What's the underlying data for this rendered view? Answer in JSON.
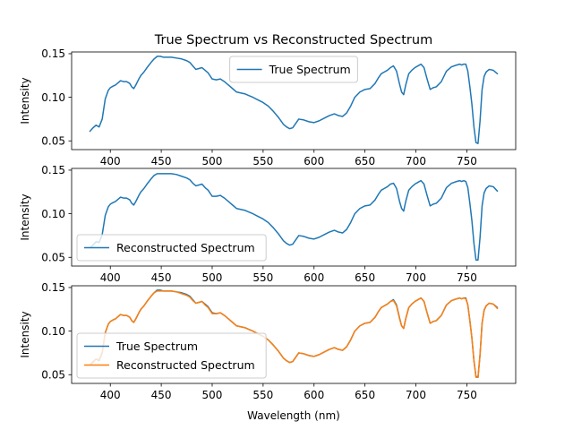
{
  "chart_data": [
    {
      "type": "line",
      "title": "True Spectrum vs Reconstructed Spectrum",
      "xlabel": "",
      "ylabel": "Intensity",
      "xlim": [
        362,
        798
      ],
      "ylim": [
        0.04,
        0.152
      ],
      "xticks": [
        400,
        450,
        500,
        550,
        600,
        650,
        700,
        750
      ],
      "yticks": [
        0.05,
        0.1,
        0.15
      ],
      "ytick_labels": [
        "0.05",
        "0.10",
        "0.15"
      ],
      "legend": "upper-center",
      "grid": false,
      "series": [
        {
          "name": "True Spectrum",
          "color": "#1f77b4",
          "x": [
            380,
            383,
            386,
            389,
            392,
            395,
            398,
            400,
            403,
            405,
            408,
            410,
            413,
            416,
            419,
            421,
            423,
            425,
            428,
            430,
            433,
            436,
            440,
            443,
            446,
            449,
            452,
            455,
            460,
            465,
            470,
            475,
            478,
            481,
            484,
            487,
            490,
            493,
            496,
            500,
            504,
            508,
            512,
            516,
            520,
            524,
            528,
            532,
            536,
            540,
            545,
            550,
            555,
            560,
            565,
            570,
            573,
            576,
            579,
            582,
            585,
            590,
            595,
            600,
            605,
            610,
            615,
            620,
            624,
            628,
            632,
            636,
            640,
            645,
            650,
            655,
            660,
            663,
            666,
            669,
            672,
            675,
            678,
            681,
            684,
            686,
            688,
            690,
            693,
            696,
            699,
            702,
            705,
            708,
            711,
            714,
            717,
            720,
            725,
            730,
            735,
            740,
            743,
            745,
            747,
            749,
            751,
            753,
            755,
            757,
            759,
            761,
            763,
            765,
            767,
            769,
            772,
            776,
            780
          ],
          "y": [
            0.061,
            0.065,
            0.068,
            0.066,
            0.075,
            0.098,
            0.108,
            0.111,
            0.113,
            0.114,
            0.117,
            0.119,
            0.118,
            0.118,
            0.116,
            0.112,
            0.11,
            0.114,
            0.121,
            0.125,
            0.129,
            0.134,
            0.14,
            0.144,
            0.147,
            0.147,
            0.146,
            0.146,
            0.146,
            0.145,
            0.144,
            0.142,
            0.14,
            0.136,
            0.132,
            0.133,
            0.134,
            0.131,
            0.128,
            0.121,
            0.12,
            0.121,
            0.118,
            0.114,
            0.11,
            0.106,
            0.105,
            0.104,
            0.102,
            0.1,
            0.097,
            0.094,
            0.09,
            0.084,
            0.077,
            0.069,
            0.066,
            0.064,
            0.065,
            0.07,
            0.075,
            0.074,
            0.072,
            0.071,
            0.073,
            0.076,
            0.079,
            0.081,
            0.079,
            0.078,
            0.082,
            0.09,
            0.1,
            0.106,
            0.109,
            0.11,
            0.116,
            0.122,
            0.127,
            0.129,
            0.131,
            0.134,
            0.136,
            0.13,
            0.115,
            0.106,
            0.103,
            0.114,
            0.127,
            0.131,
            0.134,
            0.136,
            0.138,
            0.134,
            0.121,
            0.109,
            0.111,
            0.112,
            0.118,
            0.13,
            0.135,
            0.137,
            0.138,
            0.137,
            0.138,
            0.138,
            0.13,
            0.112,
            0.092,
            0.066,
            0.048,
            0.047,
            0.073,
            0.109,
            0.124,
            0.129,
            0.132,
            0.131,
            0.127
          ]
        }
      ]
    },
    {
      "type": "line",
      "title": "",
      "xlabel": "",
      "ylabel": "Intensity",
      "xlim": [
        362,
        798
      ],
      "ylim": [
        0.04,
        0.152
      ],
      "xticks": [
        400,
        450,
        500,
        550,
        600,
        650,
        700,
        750
      ],
      "yticks": [
        0.05,
        0.1,
        0.15
      ],
      "ytick_labels": [
        "0.05",
        "0.10",
        "0.15"
      ],
      "legend": "lower-left",
      "grid": false,
      "series": [
        {
          "name": "Reconstructed Spectrum",
          "color": "#1f77b4",
          "x": [
            380,
            383,
            386,
            389,
            392,
            395,
            398,
            400,
            403,
            405,
            408,
            410,
            413,
            416,
            419,
            421,
            423,
            425,
            428,
            430,
            433,
            436,
            440,
            443,
            446,
            449,
            452,
            455,
            460,
            465,
            470,
            475,
            478,
            481,
            484,
            487,
            490,
            493,
            496,
            500,
            504,
            508,
            512,
            516,
            520,
            524,
            528,
            532,
            536,
            540,
            545,
            550,
            555,
            560,
            565,
            570,
            573,
            576,
            579,
            582,
            585,
            590,
            595,
            600,
            605,
            610,
            615,
            620,
            624,
            628,
            632,
            636,
            640,
            645,
            650,
            655,
            660,
            663,
            666,
            669,
            672,
            675,
            678,
            681,
            684,
            686,
            688,
            690,
            693,
            696,
            699,
            702,
            705,
            708,
            711,
            714,
            717,
            720,
            725,
            730,
            735,
            740,
            743,
            745,
            747,
            749,
            751,
            753,
            755,
            757,
            759,
            761,
            763,
            765,
            767,
            769,
            772,
            776,
            780
          ],
          "y": [
            0.061,
            0.064,
            0.068,
            0.067,
            0.076,
            0.098,
            0.108,
            0.111,
            0.113,
            0.114,
            0.117,
            0.119,
            0.118,
            0.118,
            0.116,
            0.112,
            0.11,
            0.114,
            0.121,
            0.125,
            0.129,
            0.134,
            0.14,
            0.144,
            0.146,
            0.146,
            0.146,
            0.146,
            0.146,
            0.145,
            0.143,
            0.141,
            0.139,
            0.135,
            0.132,
            0.133,
            0.134,
            0.13,
            0.127,
            0.12,
            0.12,
            0.121,
            0.118,
            0.114,
            0.11,
            0.106,
            0.105,
            0.104,
            0.102,
            0.1,
            0.097,
            0.094,
            0.09,
            0.084,
            0.077,
            0.069,
            0.066,
            0.064,
            0.065,
            0.07,
            0.075,
            0.074,
            0.072,
            0.071,
            0.073,
            0.076,
            0.079,
            0.081,
            0.079,
            0.078,
            0.082,
            0.09,
            0.1,
            0.106,
            0.109,
            0.11,
            0.116,
            0.122,
            0.127,
            0.129,
            0.131,
            0.134,
            0.135,
            0.129,
            0.114,
            0.106,
            0.103,
            0.114,
            0.127,
            0.131,
            0.134,
            0.136,
            0.138,
            0.134,
            0.121,
            0.109,
            0.111,
            0.112,
            0.118,
            0.13,
            0.135,
            0.137,
            0.138,
            0.137,
            0.138,
            0.137,
            0.13,
            0.112,
            0.092,
            0.066,
            0.047,
            0.047,
            0.073,
            0.109,
            0.124,
            0.129,
            0.132,
            0.131,
            0.126
          ]
        }
      ]
    },
    {
      "type": "line",
      "title": "",
      "xlabel": "Wavelength (nm)",
      "ylabel": "Intensity",
      "xlim": [
        362,
        798
      ],
      "ylim": [
        0.04,
        0.152
      ],
      "xticks": [
        400,
        450,
        500,
        550,
        600,
        650,
        700,
        750
      ],
      "yticks": [
        0.05,
        0.1,
        0.15
      ],
      "ytick_labels": [
        "0.05",
        "0.10",
        "0.15"
      ],
      "legend": "lower-left",
      "grid": false,
      "series": [
        {
          "name": "True Spectrum",
          "color": "#1f77b4",
          "x": [
            380,
            383,
            386,
            389,
            392,
            395,
            398,
            400,
            403,
            405,
            408,
            410,
            413,
            416,
            419,
            421,
            423,
            425,
            428,
            430,
            433,
            436,
            440,
            443,
            446,
            449,
            452,
            455,
            460,
            465,
            470,
            475,
            478,
            481,
            484,
            487,
            490,
            493,
            496,
            500,
            504,
            508,
            512,
            516,
            520,
            524,
            528,
            532,
            536,
            540,
            545,
            550,
            555,
            560,
            565,
            570,
            573,
            576,
            579,
            582,
            585,
            590,
            595,
            600,
            605,
            610,
            615,
            620,
            624,
            628,
            632,
            636,
            640,
            645,
            650,
            655,
            660,
            663,
            666,
            669,
            672,
            675,
            678,
            681,
            684,
            686,
            688,
            690,
            693,
            696,
            699,
            702,
            705,
            708,
            711,
            714,
            717,
            720,
            725,
            730,
            735,
            740,
            743,
            745,
            747,
            749,
            751,
            753,
            755,
            757,
            759,
            761,
            763,
            765,
            767,
            769,
            772,
            776,
            780
          ],
          "y": [
            0.061,
            0.065,
            0.068,
            0.066,
            0.075,
            0.098,
            0.108,
            0.111,
            0.113,
            0.114,
            0.117,
            0.119,
            0.118,
            0.118,
            0.116,
            0.112,
            0.11,
            0.114,
            0.121,
            0.125,
            0.129,
            0.134,
            0.14,
            0.144,
            0.147,
            0.147,
            0.146,
            0.146,
            0.146,
            0.145,
            0.144,
            0.142,
            0.14,
            0.136,
            0.132,
            0.133,
            0.134,
            0.131,
            0.128,
            0.121,
            0.12,
            0.121,
            0.118,
            0.114,
            0.11,
            0.106,
            0.105,
            0.104,
            0.102,
            0.1,
            0.097,
            0.094,
            0.09,
            0.084,
            0.077,
            0.069,
            0.066,
            0.064,
            0.065,
            0.07,
            0.075,
            0.074,
            0.072,
            0.071,
            0.073,
            0.076,
            0.079,
            0.081,
            0.079,
            0.078,
            0.082,
            0.09,
            0.1,
            0.106,
            0.109,
            0.11,
            0.116,
            0.122,
            0.127,
            0.129,
            0.131,
            0.134,
            0.136,
            0.13,
            0.115,
            0.106,
            0.103,
            0.114,
            0.127,
            0.131,
            0.134,
            0.136,
            0.138,
            0.134,
            0.121,
            0.109,
            0.111,
            0.112,
            0.118,
            0.13,
            0.135,
            0.137,
            0.138,
            0.137,
            0.138,
            0.138,
            0.13,
            0.112,
            0.092,
            0.066,
            0.048,
            0.047,
            0.073,
            0.109,
            0.124,
            0.129,
            0.132,
            0.131,
            0.127
          ]
        },
        {
          "name": "Reconstructed Spectrum",
          "color": "#ff7f0e",
          "x": [
            380,
            383,
            386,
            389,
            392,
            395,
            398,
            400,
            403,
            405,
            408,
            410,
            413,
            416,
            419,
            421,
            423,
            425,
            428,
            430,
            433,
            436,
            440,
            443,
            446,
            449,
            452,
            455,
            460,
            465,
            470,
            475,
            478,
            481,
            484,
            487,
            490,
            493,
            496,
            500,
            504,
            508,
            512,
            516,
            520,
            524,
            528,
            532,
            536,
            540,
            545,
            550,
            555,
            560,
            565,
            570,
            573,
            576,
            579,
            582,
            585,
            590,
            595,
            600,
            605,
            610,
            615,
            620,
            624,
            628,
            632,
            636,
            640,
            645,
            650,
            655,
            660,
            663,
            666,
            669,
            672,
            675,
            678,
            681,
            684,
            686,
            688,
            690,
            693,
            696,
            699,
            702,
            705,
            708,
            711,
            714,
            717,
            720,
            725,
            730,
            735,
            740,
            743,
            745,
            747,
            749,
            751,
            753,
            755,
            757,
            759,
            761,
            763,
            765,
            767,
            769,
            772,
            776,
            780
          ],
          "y": [
            0.061,
            0.064,
            0.068,
            0.067,
            0.076,
            0.098,
            0.108,
            0.111,
            0.113,
            0.114,
            0.117,
            0.119,
            0.118,
            0.118,
            0.116,
            0.112,
            0.11,
            0.114,
            0.121,
            0.125,
            0.129,
            0.134,
            0.14,
            0.144,
            0.146,
            0.146,
            0.146,
            0.146,
            0.146,
            0.145,
            0.143,
            0.141,
            0.139,
            0.135,
            0.132,
            0.133,
            0.134,
            0.13,
            0.127,
            0.12,
            0.12,
            0.121,
            0.118,
            0.114,
            0.11,
            0.106,
            0.105,
            0.104,
            0.102,
            0.1,
            0.097,
            0.094,
            0.09,
            0.084,
            0.077,
            0.069,
            0.066,
            0.064,
            0.065,
            0.07,
            0.075,
            0.074,
            0.072,
            0.071,
            0.073,
            0.076,
            0.079,
            0.081,
            0.079,
            0.078,
            0.082,
            0.09,
            0.1,
            0.106,
            0.109,
            0.11,
            0.116,
            0.122,
            0.127,
            0.129,
            0.131,
            0.134,
            0.135,
            0.129,
            0.114,
            0.106,
            0.103,
            0.114,
            0.127,
            0.131,
            0.134,
            0.136,
            0.138,
            0.134,
            0.121,
            0.109,
            0.111,
            0.112,
            0.118,
            0.13,
            0.135,
            0.137,
            0.138,
            0.137,
            0.138,
            0.137,
            0.13,
            0.112,
            0.092,
            0.066,
            0.047,
            0.047,
            0.073,
            0.109,
            0.124,
            0.129,
            0.132,
            0.131,
            0.126
          ]
        }
      ]
    }
  ]
}
